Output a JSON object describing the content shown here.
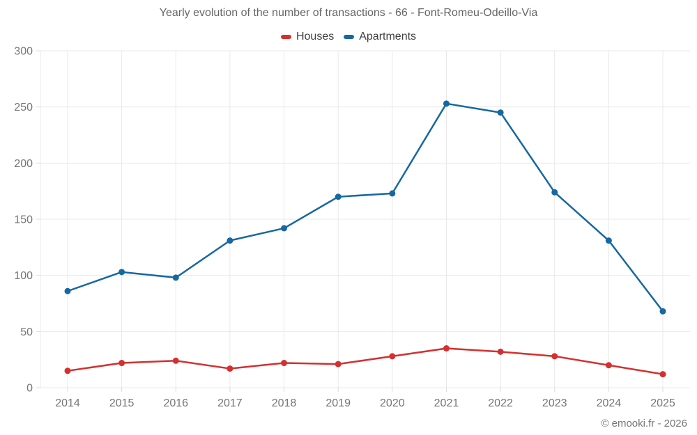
{
  "title": "Yearly evolution of the number of transactions - 66 - Font-Romeu-Odeillo-Via",
  "footer": {
    "credit": "© emooki.fr - 2026"
  },
  "colors": {
    "houses": "#d3302f",
    "apartments": "#1668a0",
    "grid": "#e8e8e8",
    "axis_line": "#dcdcdc",
    "tick_label": "#757575",
    "title_text": "#666666",
    "legend_text": "#3f3f3f"
  },
  "chart_data": {
    "type": "line",
    "title": "Yearly evolution of the number of transactions - 66 - Font-Romeu-Odeillo-Via",
    "categories": [
      "2014",
      "2015",
      "2016",
      "2017",
      "2018",
      "2019",
      "2020",
      "2021",
      "2022",
      "2023",
      "2024",
      "2025"
    ],
    "series": [
      {
        "name": "Houses",
        "color": "#d3302f",
        "values": [
          15,
          22,
          24,
          17,
          22,
          21,
          28,
          35,
          32,
          28,
          20,
          12
        ]
      },
      {
        "name": "Apartments",
        "color": "#1668a0",
        "values": [
          86,
          103,
          98,
          131,
          142,
          170,
          173,
          253,
          245,
          174,
          131,
          68
        ]
      }
    ],
    "xlabel": "",
    "ylabel": "",
    "ylim": [
      0,
      300
    ],
    "yticks": [
      0,
      50,
      100,
      150,
      200,
      250,
      300
    ],
    "grid": true,
    "legend_position": "top",
    "marker": "circle"
  }
}
